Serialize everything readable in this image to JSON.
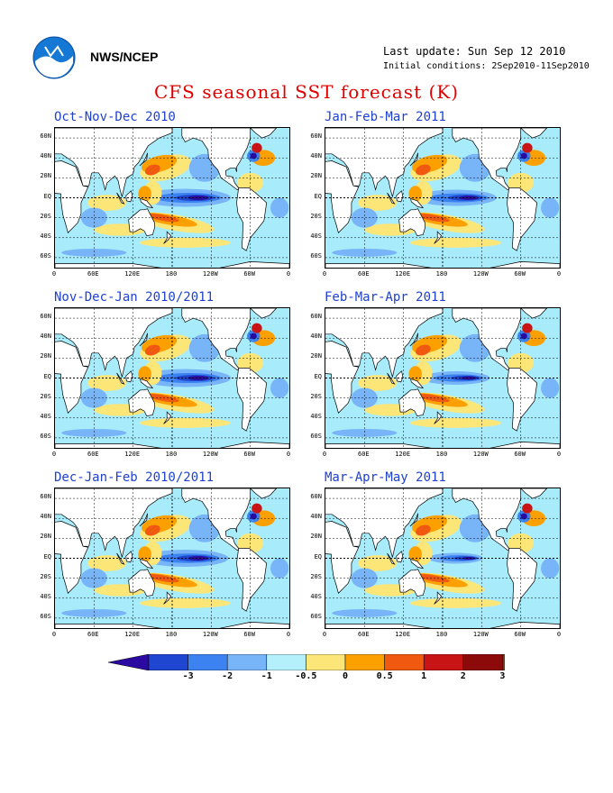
{
  "header": {
    "agency": "NWS/NCEP",
    "last_update": "Last update: Sun Sep 12 2010",
    "initial_conditions": "Initial conditions: 2Sep2010-11Sep2010"
  },
  "title": "CFS seasonal SST forecast (K)",
  "panels": [
    {
      "title": "Oct-Nov-Dec 2010",
      "la_nina_intensity": 1.0
    },
    {
      "title": "Jan-Feb-Mar 2011",
      "la_nina_intensity": 0.9
    },
    {
      "title": "Nov-Dec-Jan 2010/2011",
      "la_nina_intensity": 1.0
    },
    {
      "title": "Feb-Mar-Apr 2011",
      "la_nina_intensity": 0.75
    },
    {
      "title": "Dec-Jan-Feb 2010/2011",
      "la_nina_intensity": 0.95
    },
    {
      "title": "Mar-Apr-May 2011",
      "la_nina_intensity": 0.6
    }
  ],
  "lat_labels": [
    "60N",
    "40N",
    "20N",
    "EQ",
    "20S",
    "40S",
    "60S"
  ],
  "lon_labels": [
    "0",
    "60E",
    "120E",
    "180",
    "120W",
    "60W",
    "0"
  ],
  "colorbar": {
    "labels": [
      "-3",
      "-2",
      "-1",
      "-0.5",
      "0",
      "0.5",
      "1",
      "2",
      "3"
    ],
    "colors": [
      "#2a0aa0",
      "#1e46d0",
      "#3c82f0",
      "#78b4f8",
      "#b4f0fc",
      "#fce678",
      "#fca000",
      "#f05a10",
      "#c81414",
      "#8c0a0a",
      "#6a3c28"
    ]
  },
  "palette": {
    "ocean_base": "#a8ecfc",
    "cool_light": "#78b4f8",
    "cool": "#3c82f0",
    "cool_strong": "#1e46d0",
    "cool_extreme": "#2a0aa0",
    "warm_light": "#fce678",
    "warm": "#fca000",
    "warm_strong": "#f05a10",
    "warm_extreme": "#c81414",
    "land": "#ffffff",
    "title_red": "#e00000",
    "panel_title_blue": "#2040d0"
  }
}
